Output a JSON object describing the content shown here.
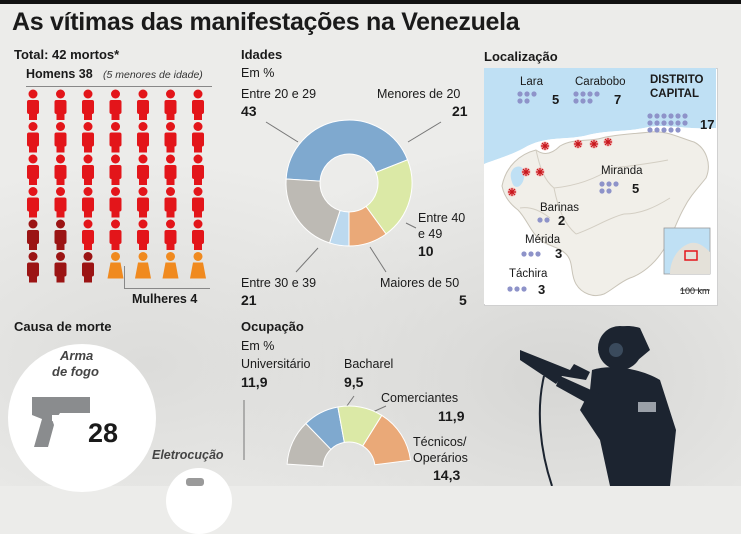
{
  "title": "As vítimas das manifestações na Venezuela",
  "total": {
    "label": "Total: 42 mortos*",
    "men_label": "Homens 38",
    "men_note": "(5 menores de idade)",
    "women_label": "Mulheres 4",
    "men_count": 38,
    "men_minors": 5,
    "women_count": 4,
    "colors": {
      "men": "#e3151a",
      "minors": "#9b1414",
      "women": "#f08a1f"
    }
  },
  "ages": {
    "heading": "Idades",
    "unit": "Em %",
    "items": [
      {
        "label": "Entre 20 e 29",
        "value": "43"
      },
      {
        "label": "Menores de 20",
        "value": "21"
      },
      {
        "label": "Entre 40",
        "label2": "e 49",
        "value": "10"
      },
      {
        "label": "Maiores de 50",
        "value": "5"
      },
      {
        "label": "Entre 30 e 39",
        "value": "21"
      }
    ]
  },
  "location": {
    "heading": "Localização",
    "states": [
      {
        "name": "Lara",
        "count": "5"
      },
      {
        "name": "Carabobo",
        "count": "7"
      },
      {
        "name": "DISTRITO",
        "name2": "CAPITAL",
        "count": "17"
      },
      {
        "name": "Miranda",
        "count": "5"
      },
      {
        "name": "Barinas",
        "count": "2"
      },
      {
        "name": "Mérida",
        "count": "3"
      },
      {
        "name": "Táchira",
        "count": "3"
      }
    ],
    "scale": "100 km"
  },
  "cause": {
    "heading": "Causa de morte",
    "firearm_label": "Arma",
    "firearm_label2": "de fogo",
    "firearm_value": "28",
    "electro_label": "Eletrocução"
  },
  "occupation": {
    "heading": "Ocupação",
    "unit": "Em %",
    "items": [
      {
        "label": "Universitário",
        "value": "11,9"
      },
      {
        "label": "Bacharel",
        "value": "9,5"
      },
      {
        "label": "Comerciantes",
        "value": "11,9"
      },
      {
        "label": "Técnicos/",
        "label2": "Operários",
        "value": "14,3"
      }
    ]
  },
  "chart_data": [
    {
      "type": "pie",
      "title": "Idades",
      "unit": "Em %",
      "categories": [
        "Entre 20 e 29",
        "Menores de 20",
        "Entre 40 e 49",
        "Maiores de 50",
        "Entre 30 e 39"
      ],
      "values": [
        43,
        21,
        10,
        5,
        21
      ],
      "colors": [
        "#7fa9cf",
        "#dbe9a6",
        "#eaa978",
        "#bcd9ef",
        "#bdbab4"
      ]
    },
    {
      "type": "pie",
      "title": "Ocupação",
      "unit": "Em %",
      "categories": [
        "Universitário",
        "Bacharel",
        "Comerciantes",
        "Técnicos/Operários"
      ],
      "values": [
        11.9,
        9.5,
        11.9,
        14.3
      ],
      "colors": [
        "#bdbab4",
        "#7fa9cf",
        "#dbe9a6",
        "#eaa978"
      ]
    },
    {
      "type": "bar",
      "title": "Localização",
      "categories": [
        "Lara",
        "Carabobo",
        "DISTRITO CAPITAL",
        "Miranda",
        "Barinas",
        "Mérida",
        "Táchira"
      ],
      "values": [
        5,
        7,
        17,
        5,
        2,
        3,
        3
      ]
    }
  ]
}
